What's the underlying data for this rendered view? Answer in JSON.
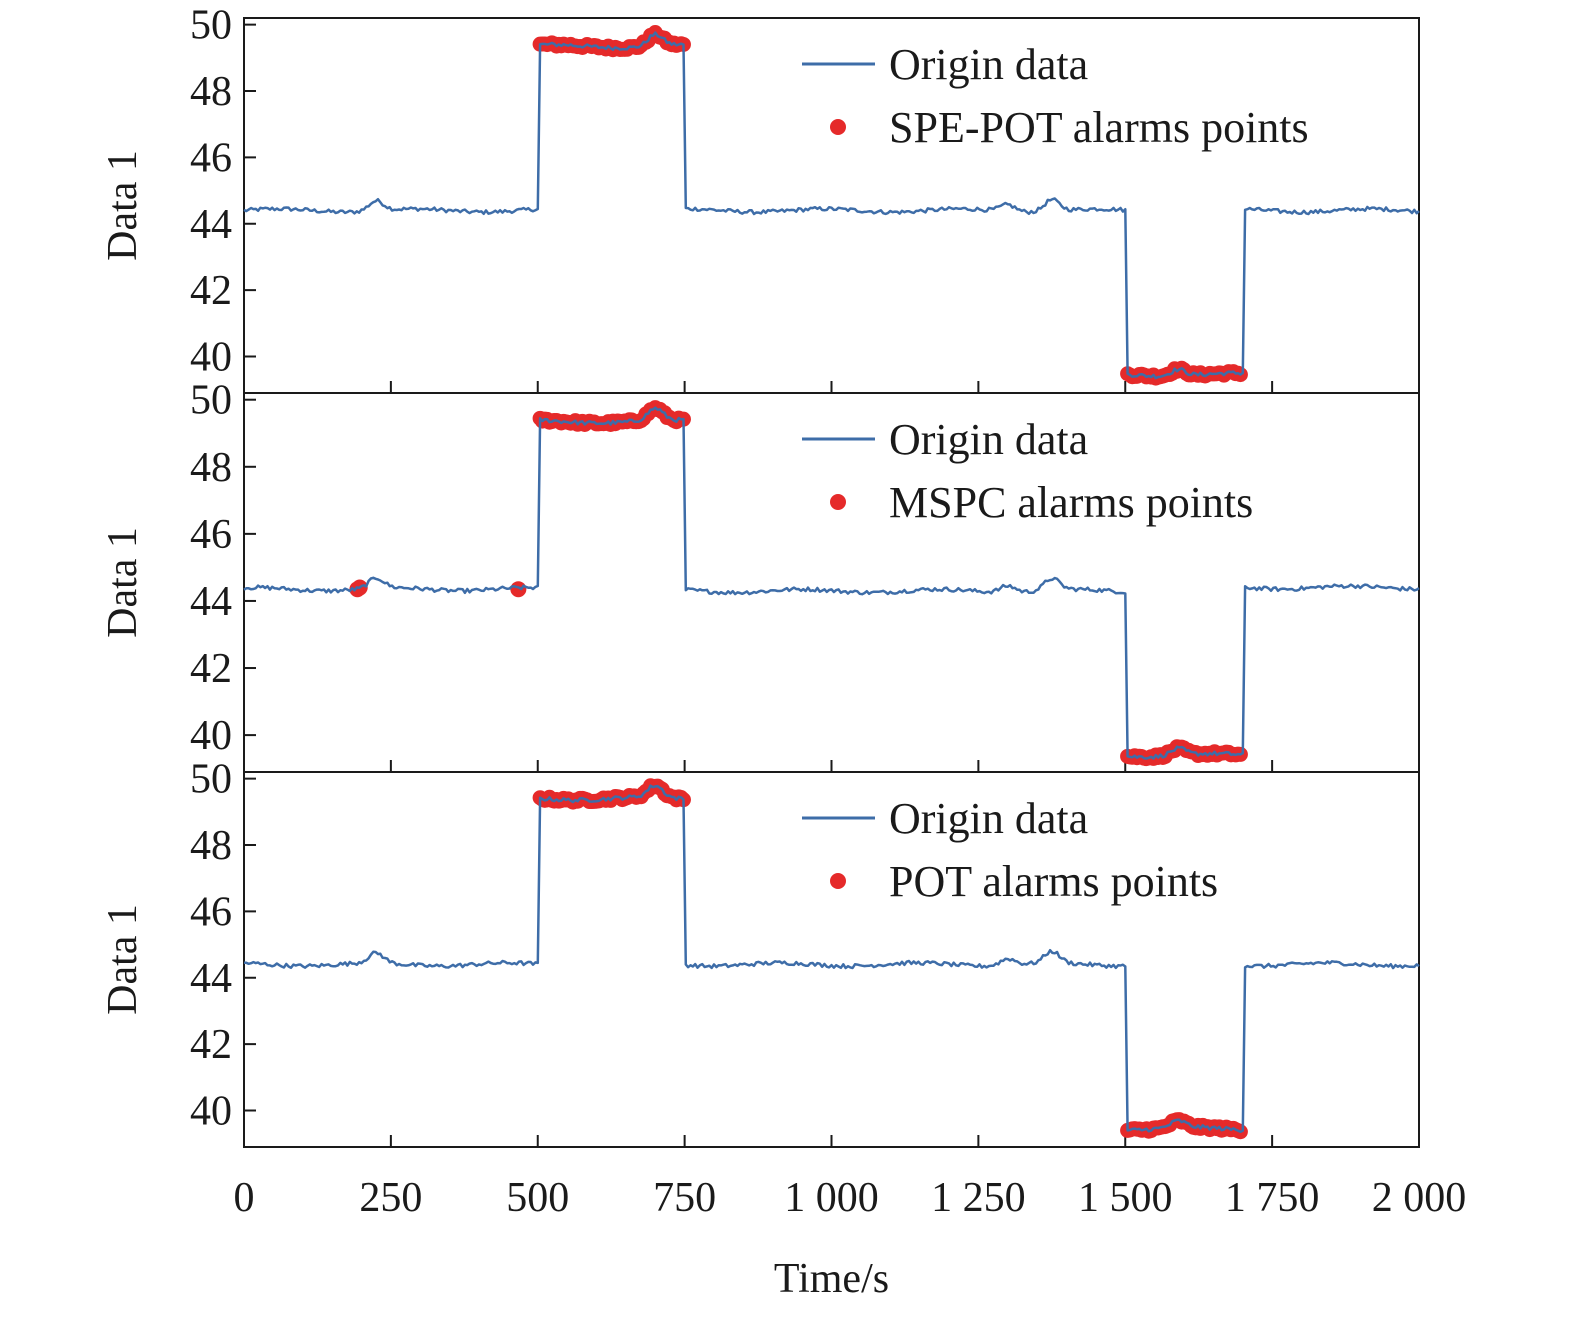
{
  "chart_data": [
    {
      "type": "line",
      "ylabel": "Data 1",
      "xlabel": "",
      "xlim": [
        0,
        2000
      ],
      "ylim": [
        38.9,
        50.2
      ],
      "yticks": [
        40,
        42,
        44,
        46,
        48,
        50
      ],
      "x_tick_labels_shown": false,
      "legend_placement": "top-right",
      "series": [
        {
          "name": "Origin data",
          "color": "#3e6da8",
          "style": "line",
          "segments": [
            {
              "x_start": 0,
              "x_end": 500,
              "level": 44.4
            },
            {
              "x_start": 500,
              "x_end": 750,
              "level": 49.35
            },
            {
              "x_start": 750,
              "x_end": 1500,
              "level": 44.4
            },
            {
              "x_start": 1500,
              "x_end": 1700,
              "level": 39.45
            },
            {
              "x_start": 1700,
              "x_end": 2000,
              "level": 44.4
            }
          ],
          "bumps": [
            {
              "x": 225,
              "dy": 0.3
            },
            {
              "x": 700,
              "dy": 0.35
            },
            {
              "x": 1300,
              "dy": 0.2
            },
            {
              "x": 1375,
              "dy": 0.35
            },
            {
              "x": 1590,
              "dy": 0.2
            }
          ]
        },
        {
          "name": "SPE-POT alarms points",
          "color": "#e52a2a",
          "style": "markers",
          "alarm_ranges": [
            [
              500,
              750
            ],
            [
              1500,
              1700
            ]
          ],
          "isolated_points": []
        }
      ]
    },
    {
      "type": "line",
      "ylabel": "Data 1",
      "xlabel": "",
      "xlim": [
        0,
        2000
      ],
      "ylim": [
        38.9,
        50.2
      ],
      "yticks": [
        40,
        42,
        44,
        46,
        48,
        50
      ],
      "x_tick_labels_shown": false,
      "legend_placement": "top-right",
      "series": [
        {
          "name": "Origin data",
          "color": "#3e6da8",
          "style": "line",
          "segments": [
            {
              "x_start": 0,
              "x_end": 500,
              "level": 44.35
            },
            {
              "x_start": 500,
              "x_end": 750,
              "level": 49.35
            },
            {
              "x_start": 750,
              "x_end": 1500,
              "level": 44.3
            },
            {
              "x_start": 1500,
              "x_end": 1700,
              "level": 39.4
            },
            {
              "x_start": 1700,
              "x_end": 2000,
              "level": 44.4
            }
          ],
          "bumps": [
            {
              "x": 225,
              "dy": 0.3
            },
            {
              "x": 700,
              "dy": 0.35
            },
            {
              "x": 1300,
              "dy": 0.2
            },
            {
              "x": 1375,
              "dy": 0.35
            },
            {
              "x": 1590,
              "dy": 0.2
            }
          ]
        },
        {
          "name": "MSPC alarms points",
          "color": "#e52a2a",
          "style": "markers",
          "alarm_ranges": [
            [
              500,
              750
            ],
            [
              1500,
              1700
            ]
          ],
          "isolated_points": [
            {
              "x": 193,
              "y": 44.35
            },
            {
              "x": 197,
              "y": 44.4
            },
            {
              "x": 467,
              "y": 44.35
            }
          ]
        }
      ]
    },
    {
      "type": "line",
      "ylabel": "Data 1",
      "xlabel": "Time/s",
      "xlim": [
        0,
        2000
      ],
      "ylim": [
        38.9,
        50.2
      ],
      "yticks": [
        40,
        42,
        44,
        46,
        48,
        50
      ],
      "xticks": [
        0,
        250,
        500,
        750,
        1000,
        1250,
        1500,
        1750,
        2000
      ],
      "xtick_labels": [
        "0",
        "250",
        "500",
        "750",
        "1 000",
        "1 250",
        "1 500",
        "1 750",
        "2 000"
      ],
      "x_tick_labels_shown": true,
      "legend_placement": "top-right",
      "series": [
        {
          "name": "Origin data",
          "color": "#3e6da8",
          "style": "line",
          "segments": [
            {
              "x_start": 0,
              "x_end": 500,
              "level": 44.4
            },
            {
              "x_start": 500,
              "x_end": 750,
              "level": 49.4
            },
            {
              "x_start": 750,
              "x_end": 1500,
              "level": 44.4
            },
            {
              "x_start": 1500,
              "x_end": 1700,
              "level": 39.45
            },
            {
              "x_start": 1700,
              "x_end": 2000,
              "level": 44.4
            }
          ],
          "bumps": [
            {
              "x": 225,
              "dy": 0.3
            },
            {
              "x": 700,
              "dy": 0.35
            },
            {
              "x": 1300,
              "dy": 0.2
            },
            {
              "x": 1375,
              "dy": 0.35
            },
            {
              "x": 1590,
              "dy": 0.2
            }
          ]
        },
        {
          "name": "POT alarms points",
          "color": "#e52a2a",
          "style": "markers",
          "alarm_ranges": [
            [
              500,
              750
            ],
            [
              1500,
              1700
            ]
          ],
          "isolated_points": []
        }
      ]
    }
  ]
}
